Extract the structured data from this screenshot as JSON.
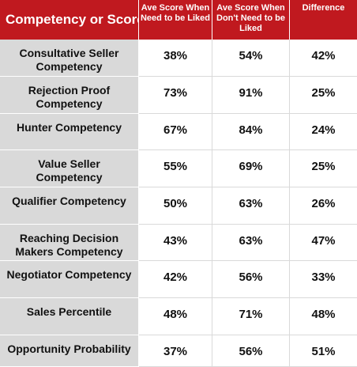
{
  "chart_data": {
    "type": "table",
    "columns": [
      "Competency or Score",
      "Ave Score When Need to be Liked",
      "Ave Score When Don't Need to be Liked",
      "Difference"
    ],
    "rows": [
      [
        "Consultative Seller Competency",
        "38%",
        "54%",
        "42%"
      ],
      [
        "Rejection Proof Competency",
        "73%",
        "91%",
        "25%"
      ],
      [
        "Hunter Competency",
        "67%",
        "84%",
        "24%"
      ],
      [
        "Value Seller Competency",
        "55%",
        "69%",
        "25%"
      ],
      [
        "Qualifier Competency",
        "50%",
        "63%",
        "26%"
      ],
      [
        "Reaching Decision Makers Competency",
        "43%",
        "63%",
        "47%"
      ],
      [
        "Negotiator Competency",
        "42%",
        "56%",
        "33%"
      ],
      [
        "Sales Percentile",
        "48%",
        "71%",
        "48%"
      ],
      [
        "Opportunity Probability",
        "37%",
        "56%",
        "51%"
      ]
    ]
  },
  "colors": {
    "header_bg": "#c0191f",
    "label_bg": "#d9d9d9"
  }
}
